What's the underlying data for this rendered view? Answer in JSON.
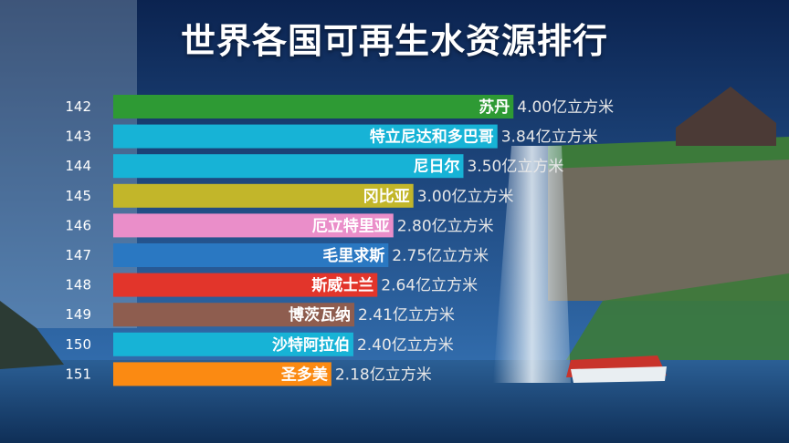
{
  "title": "世界各国可再生水资源排行",
  "colors": {
    "sky_top": "#0b2350",
    "sky_bottom": "#2f6fb5",
    "water": "#1e4f86",
    "cliff": "#6f6a5c",
    "grass": "#3c7a3a"
  },
  "chart_data": {
    "type": "bar",
    "orientation": "horizontal",
    "title": "世界各国可再生水资源排行",
    "unit": "亿立方米",
    "xlim": [
      0,
      4.6
    ],
    "grid": false,
    "categories": [
      "苏丹",
      "特立尼达和多巴哥",
      "尼日尔",
      "冈比亚",
      "厄立特里亚",
      "毛里求斯",
      "斯威士兰",
      "博茨瓦纳",
      "沙特阿拉伯",
      "圣多美"
    ],
    "ranks": [
      "142",
      "143",
      "144",
      "145",
      "146",
      "147",
      "148",
      "149",
      "150",
      "151"
    ],
    "values": [
      4.0,
      3.84,
      3.5,
      3.0,
      2.8,
      2.75,
      2.64,
      2.41,
      2.4,
      2.18
    ],
    "value_labels": [
      "4.00亿立方米",
      "3.84亿立方米",
      "3.50亿立方米",
      "3.00亿立方米",
      "2.80亿立方米",
      "2.75亿立方米",
      "2.64亿立方米",
      "2.41亿立方米",
      "2.40亿立方米",
      "2.18亿立方米"
    ],
    "bar_colors": [
      "#2e9a34",
      "#17b3d6",
      "#17b3d6",
      "#c2b62a",
      "#ea8ec9",
      "#2a78c2",
      "#e2352b",
      "#8e5d4f",
      "#17b3d6",
      "#fb8a12"
    ]
  }
}
